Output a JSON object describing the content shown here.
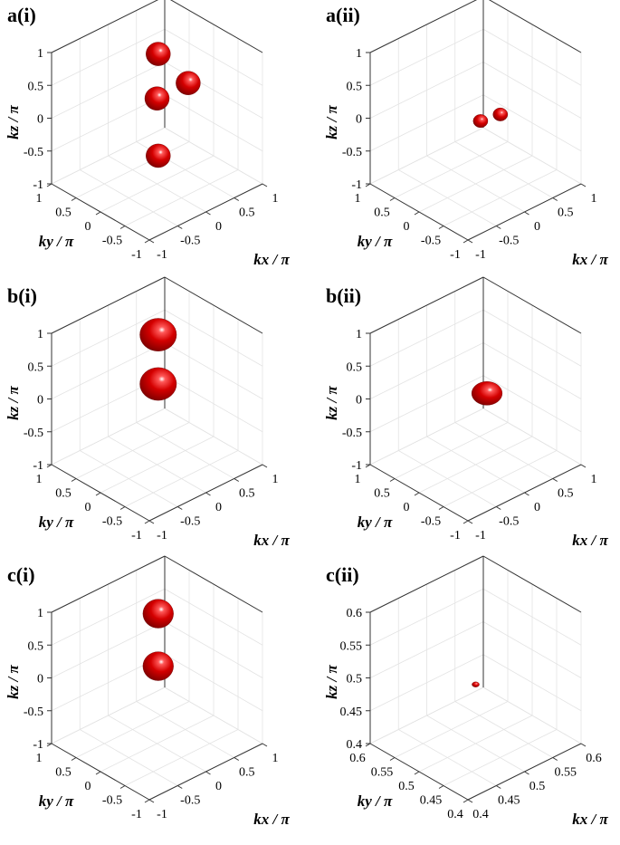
{
  "chart_data": [
    {
      "panel": "a(i)",
      "type": "scatter",
      "xlabel": "kx / π",
      "ylabel": "ky / π",
      "zlabel": "kz / π",
      "xlim": [
        -1,
        1
      ],
      "ylim": [
        -1,
        1
      ],
      "zlim": [
        -1,
        1
      ],
      "xticks": [
        "-1",
        "-0.5",
        "0",
        "0.5",
        "1"
      ],
      "yticks": [
        "-1",
        "-0.5",
        "0",
        "0.5",
        "1"
      ],
      "zticks": [
        "-1",
        "-0.5",
        "0",
        "0.5",
        "1"
      ],
      "grid": true,
      "color": "#cc0000",
      "surfaces": [
        {
          "x": 0.15,
          "y": 0.15,
          "z": 0.85,
          "rx": 0.2,
          "ry": 0.2,
          "rz": 0.18
        },
        {
          "x": 0.0,
          "y": 0.0,
          "z": 0.3,
          "rx": 0.2,
          "ry": 0.2,
          "rz": 0.18
        },
        {
          "x": 0.55,
          "y": 0.0,
          "z": 0.3,
          "rx": 0.2,
          "ry": 0.2,
          "rz": 0.18
        },
        {
          "x": 0.15,
          "y": 0.15,
          "z": -0.7,
          "rx": 0.2,
          "ry": 0.2,
          "rz": 0.18
        }
      ]
    },
    {
      "panel": "a(ii)",
      "type": "scatter",
      "xlabel": "kx / π",
      "ylabel": "ky / π",
      "zlabel": "kz / π",
      "xlim": [
        -1,
        1
      ],
      "ylim": [
        -1,
        1
      ],
      "zlim": [
        -1,
        1
      ],
      "xticks": [
        "-1",
        "-0.5",
        "0",
        "0.5",
        "1"
      ],
      "yticks": [
        "-1",
        "-0.5",
        "0",
        "0.5",
        "1"
      ],
      "zticks": [
        "-1",
        "-0.5",
        "0",
        "0.5",
        "1"
      ],
      "grid": true,
      "color": "#cc0000",
      "surfaces": [
        {
          "x": 0.0,
          "y": -0.1,
          "z": 0.0,
          "rx": 0.12,
          "ry": 0.12,
          "rz": 0.1
        },
        {
          "x": 0.35,
          "y": -0.1,
          "z": -0.05,
          "rx": 0.12,
          "ry": 0.12,
          "rz": 0.1
        }
      ]
    },
    {
      "panel": "b(i)",
      "type": "scatter",
      "xlabel": "kx / π",
      "ylabel": "ky / π",
      "zlabel": "kz / π",
      "xlim": [
        -1,
        1
      ],
      "ylim": [
        -1,
        1
      ],
      "zlim": [
        -1,
        1
      ],
      "xticks": [
        "-1",
        "-0.5",
        "0",
        "0.5",
        "1"
      ],
      "yticks": [
        "-1",
        "-0.5",
        "0",
        "0.5",
        "1"
      ],
      "zticks": [
        "-1",
        "-0.5",
        "0",
        "0.5",
        "1"
      ],
      "grid": true,
      "color": "#cc0000",
      "surfaces": [
        {
          "x": 0.15,
          "y": 0.15,
          "z": 0.85,
          "rx": 0.3,
          "ry": 0.3,
          "rz": 0.25
        },
        {
          "x": 0.15,
          "y": 0.15,
          "z": 0.1,
          "rx": 0.3,
          "ry": 0.3,
          "rz": 0.25
        }
      ]
    },
    {
      "panel": "b(ii)",
      "type": "scatter",
      "xlabel": "kx / π",
      "ylabel": "ky / π",
      "zlabel": "kz / π",
      "xlim": [
        -1,
        1
      ],
      "ylim": [
        -1,
        1
      ],
      "zlim": [
        -1,
        1
      ],
      "xticks": [
        "-1",
        "-0.5",
        "0",
        "0.5",
        "1"
      ],
      "yticks": [
        "-1",
        "-0.5",
        "0",
        "0.5",
        "1"
      ],
      "zticks": [
        "-1",
        "-0.5",
        "0",
        "0.5",
        "1"
      ],
      "grid": true,
      "color": "#cc0000",
      "surfaces": [
        {
          "x": 0.2,
          "y": 0.0,
          "z": 0.0,
          "rx": 0.25,
          "ry": 0.25,
          "rz": 0.18
        }
      ]
    },
    {
      "panel": "c(i)",
      "type": "scatter",
      "xlabel": "kx / π",
      "ylabel": "ky / π",
      "zlabel": "kz / π",
      "xlim": [
        -1,
        1
      ],
      "ylim": [
        -1,
        1
      ],
      "zlim": [
        -1,
        1
      ],
      "xticks": [
        "-1",
        "-0.5",
        "0",
        "0.5",
        "1"
      ],
      "yticks": [
        "-1",
        "-0.5",
        "0",
        "0.5",
        "1"
      ],
      "zticks": [
        "-1",
        "-0.5",
        "0",
        "0.5",
        "1"
      ],
      "grid": true,
      "color": "#cc0000",
      "surfaces": [
        {
          "x": 0.15,
          "y": 0.15,
          "z": 0.85,
          "rx": 0.25,
          "ry": 0.25,
          "rz": 0.22
        },
        {
          "x": 0.15,
          "y": 0.15,
          "z": 0.05,
          "rx": 0.25,
          "ry": 0.25,
          "rz": 0.22
        }
      ]
    },
    {
      "panel": "c(ii)",
      "type": "scatter",
      "xlabel": "kx / π",
      "ylabel": "ky / π",
      "zlabel": "kz / π",
      "xlim": [
        0.4,
        0.6
      ],
      "ylim": [
        0.4,
        0.6
      ],
      "zlim": [
        0.4,
        0.6
      ],
      "xticks": [
        "0.4",
        "0.45",
        "0.5",
        "0.55",
        "0.6"
      ],
      "yticks": [
        "0.4",
        "0.45",
        "0.5",
        "0.55",
        "0.6"
      ],
      "zticks": [
        "0.4",
        "0.45",
        "0.5",
        "0.55",
        "0.6"
      ],
      "grid": true,
      "color": "#cc0000",
      "surfaces": [
        {
          "x": 0.5,
          "y": 0.5,
          "z": 0.49,
          "rx": 0.006,
          "ry": 0.006,
          "rz": 0.004
        }
      ]
    }
  ]
}
